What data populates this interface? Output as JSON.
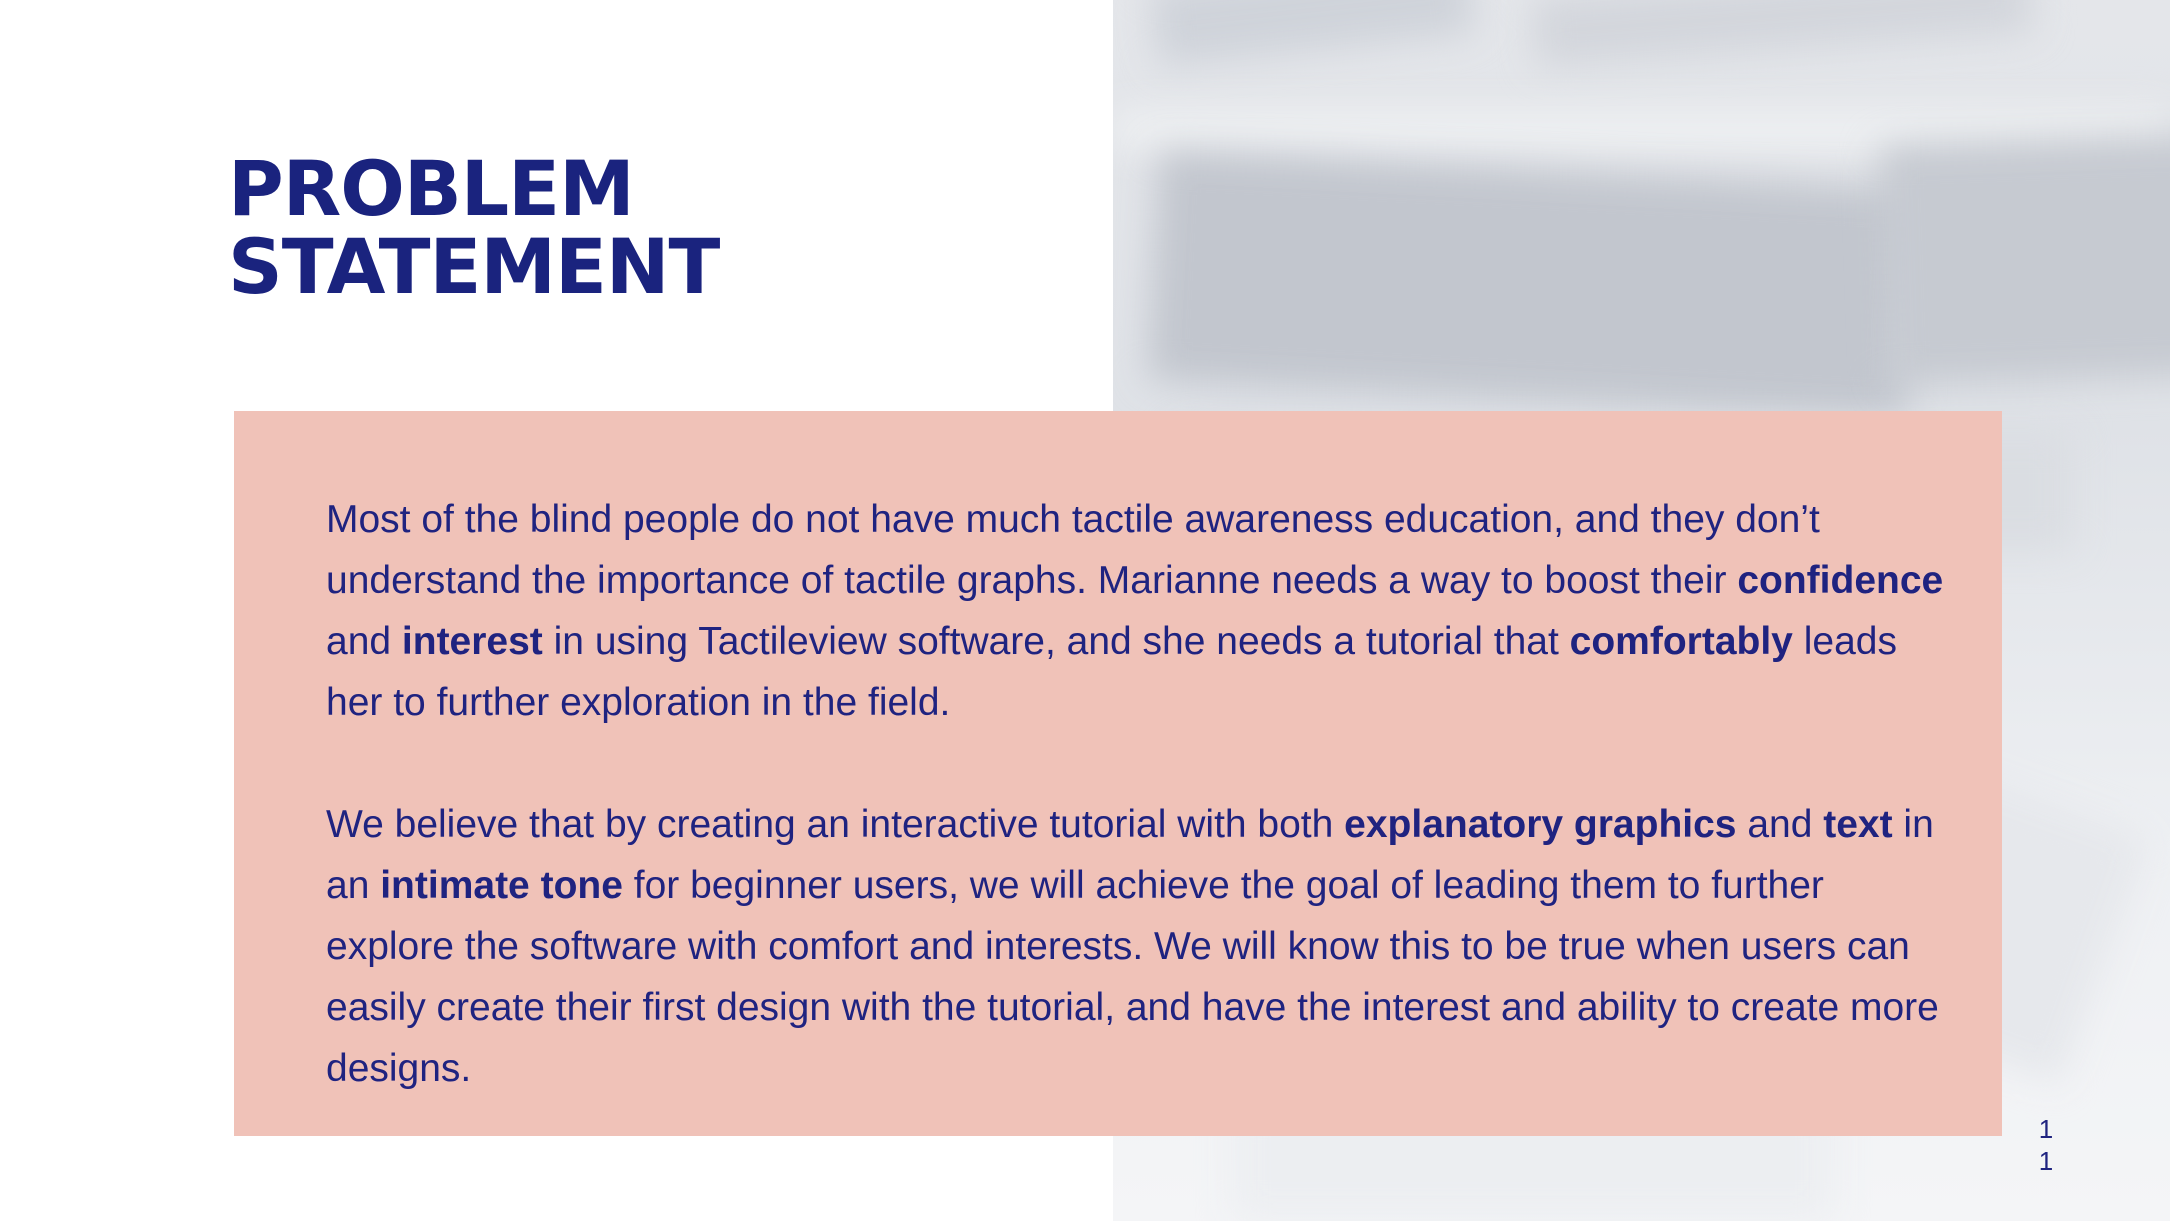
{
  "slide": {
    "title_line1": "PROBLEM",
    "title_line2": "STATEMENT",
    "paragraph1": [
      {
        "text": "Most of the blind people do not have much tactile awareness education, and they don’t understand the importance of tactile graphs. Marianne needs a way to boost their ",
        "bold": false
      },
      {
        "text": "confidence",
        "bold": true
      },
      {
        "text": " and ",
        "bold": false
      },
      {
        "text": "interest",
        "bold": true
      },
      {
        "text": " in using Tactileview software, and she needs a tutorial that ",
        "bold": false
      },
      {
        "text": "comfortably",
        "bold": true
      },
      {
        "text": " leads her to further exploration in the field.",
        "bold": false
      }
    ],
    "paragraph2": [
      {
        "text": "We believe that by creating an interactive tutorial with both ",
        "bold": false
      },
      {
        "text": "explanatory graphics",
        "bold": true
      },
      {
        "text": " and ",
        "bold": false
      },
      {
        "text": "text",
        "bold": true
      },
      {
        "text": " in an ",
        "bold": false
      },
      {
        "text": "intimate tone",
        "bold": true
      },
      {
        "text": " for beginner users, we will achieve the goal of leading them to further explore the software with comfort and interests. We will know this to be true when users can easily create their first design with the tutorial, and have the interest and ability to create more designs.",
        "bold": false
      }
    ],
    "page_number": "11"
  },
  "colors": {
    "title": "#1a237e",
    "text": "#1f2380",
    "card_background": "#f0c2b8",
    "photo_background": "#e4e6ea"
  }
}
